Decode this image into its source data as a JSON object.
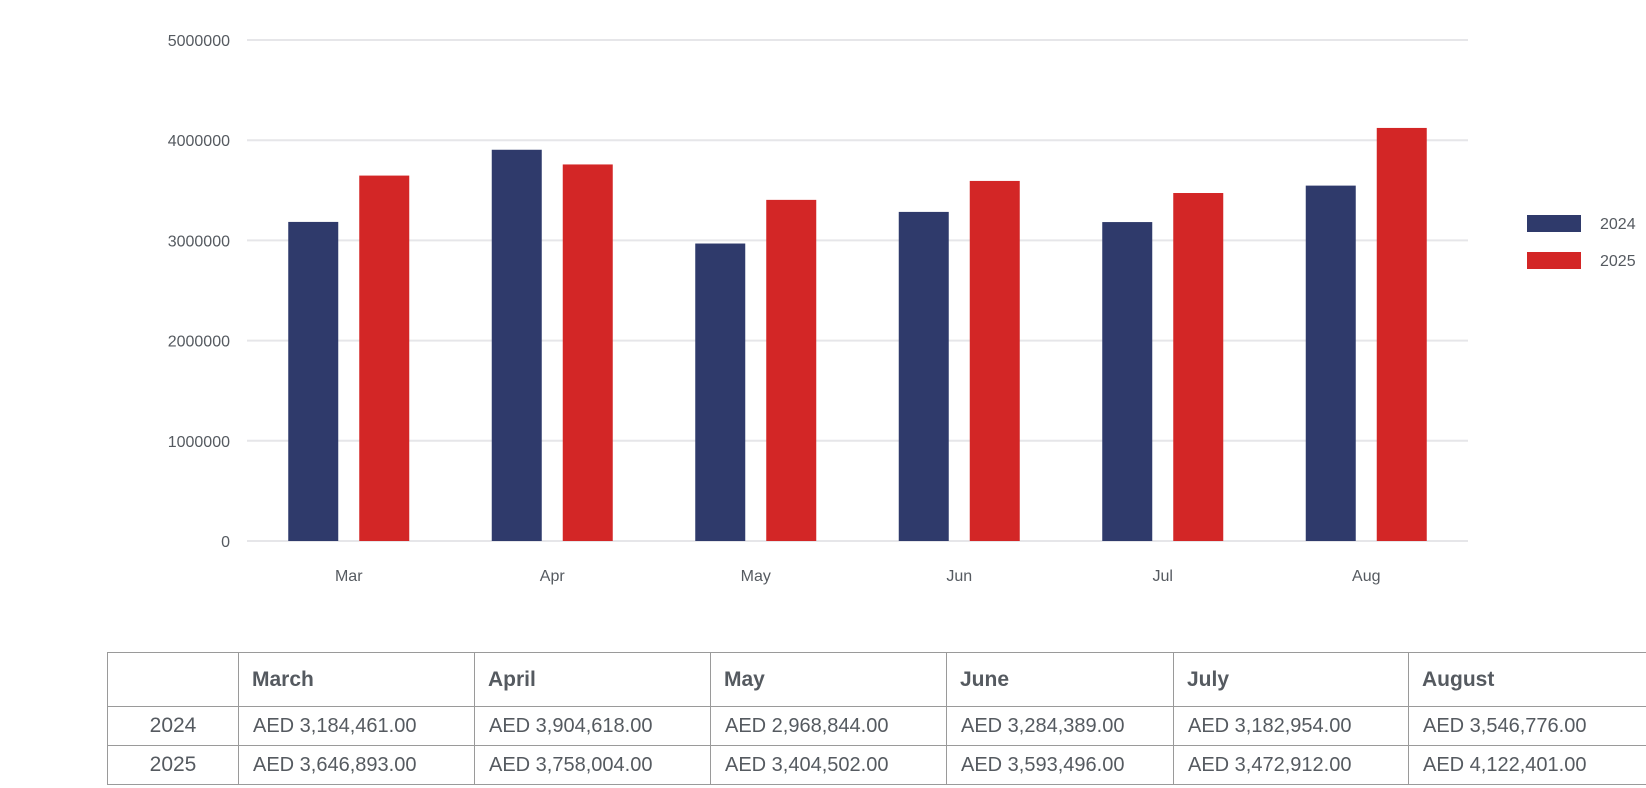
{
  "chart_data": {
    "type": "bar",
    "categories": [
      "Mar",
      "Apr",
      "May",
      "Jun",
      "Jul",
      "Aug"
    ],
    "series": [
      {
        "name": "2024",
        "color": "#2f3a6b",
        "values": [
          3184461,
          3904618,
          2968844,
          3284389,
          3182954,
          3546776
        ]
      },
      {
        "name": "2025",
        "color": "#d32626",
        "values": [
          3646893,
          3758004,
          3404502,
          3593496,
          3472912,
          4122401
        ]
      }
    ],
    "y_ticks": [
      "0",
      "1000000",
      "2000000",
      "3000000",
      "4000000",
      "5000000"
    ],
    "ylim": [
      0,
      5000000
    ],
    "grid": true,
    "legend_position": "right"
  },
  "table": {
    "header": [
      "",
      "March",
      "April",
      "May",
      "June",
      "July",
      "August"
    ],
    "rows": [
      {
        "label": "2024",
        "cells": [
          "AED 3,184,461.00",
          "AED 3,904,618.00",
          "AED 2,968,844.00",
          "AED 3,284,389.00",
          "AED 3,182,954.00",
          "AED 3,546,776.00"
        ]
      },
      {
        "label": "2025",
        "cells": [
          "AED 3,646,893.00",
          "AED 3,758,004.00",
          "AED 3,404,502.00",
          "AED 3,593,496.00",
          "AED 3,472,912.00",
          "AED 4,122,401.00"
        ]
      }
    ]
  }
}
